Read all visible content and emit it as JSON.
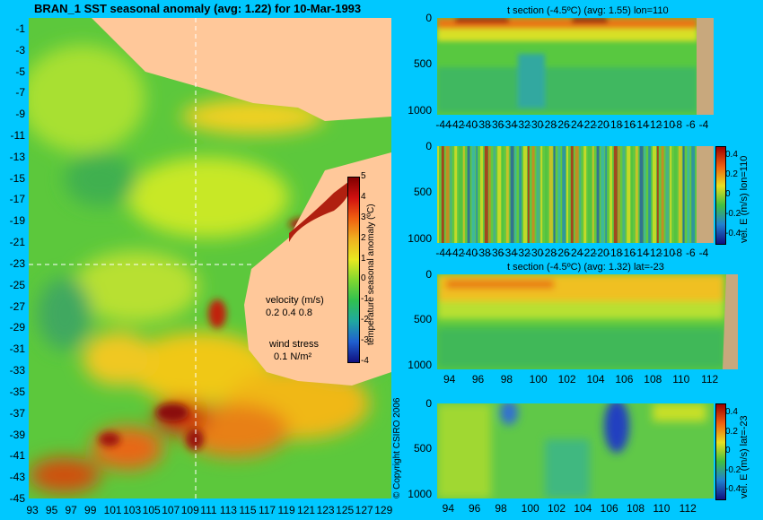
{
  "main_title": "BRAN_1  SST seasonal anomaly (avg: 1.22) for 10-Mar-1993",
  "copyright": "© Copyright CSIRO 2006",
  "colors": {
    "background": "#00c8ff",
    "land_map": "#ffc89a",
    "land_section": "#c8a87d"
  },
  "map": {
    "x_ticks": [
      "93",
      "95",
      "97",
      "99",
      "101",
      "103",
      "105",
      "107",
      "109",
      "111",
      "113",
      "115",
      "117",
      "119",
      "121",
      "123",
      "125",
      "127",
      "129"
    ],
    "y_ticks": [
      "-1",
      "-3",
      "-5",
      "-7",
      "-9",
      "-11",
      "-13",
      "-15",
      "-17",
      "-19",
      "-21",
      "-23",
      "-25",
      "-27",
      "-29",
      "-31",
      "-33",
      "-35",
      "-37",
      "-39",
      "-41",
      "-43",
      "-45"
    ],
    "colorbar_label": "temperature seasonal anomaly (ºC)",
    "colorbar_ticks": [
      "5",
      "4",
      "3",
      "2",
      "1",
      "0",
      "-1",
      "-2",
      "-3",
      "-4"
    ],
    "velocity_label": "velocity (m/s)",
    "velocity_scale": "0.2 0.4 0.8",
    "wind_label": "wind stress",
    "wind_scale": "0.1 N/m²"
  },
  "sections": [
    {
      "title": "t section (-4.5ºC) (avg: 1.55) lon=110",
      "x_ticks": [
        "-44",
        "-42",
        "-40",
        "-38",
        "-36",
        "-34",
        "-32",
        "-30",
        "-28",
        "-26",
        "-24",
        "-22",
        "-20",
        "-18",
        "-16",
        "-14",
        "-12",
        "-10",
        "-8",
        "-6",
        "-4"
      ],
      "y_ticks": [
        "0",
        "500",
        "1000"
      ]
    },
    {
      "title": "",
      "x_ticks": [
        "-44",
        "-42",
        "-40",
        "-38",
        "-36",
        "-34",
        "-32",
        "-30",
        "-28",
        "-26",
        "-24",
        "-22",
        "-20",
        "-18",
        "-16",
        "-14",
        "-12",
        "-10",
        "-8",
        "-6",
        "-4"
      ],
      "y_ticks": [
        "0",
        "500",
        "1000"
      ],
      "colorbar_label": "vel. E (m/s) lon=110",
      "colorbar_ticks": [
        "0.4",
        "0.2",
        "0",
        "-0.2",
        "-0.4"
      ]
    },
    {
      "title": "t section (-4.5ºC) (avg: 1.32) lat=-23",
      "x_ticks": [
        "94",
        "96",
        "98",
        "100",
        "102",
        "104",
        "106",
        "108",
        "110",
        "112"
      ],
      "y_ticks": [
        "0",
        "500",
        "1000"
      ]
    },
    {
      "title": "",
      "x_ticks": [
        "94",
        "96",
        "98",
        "100",
        "102",
        "104",
        "106",
        "108",
        "110",
        "112"
      ],
      "y_ticks": [
        "0",
        "500",
        "1000"
      ],
      "colorbar_label": "vel. E (m/s) lat=-23",
      "colorbar_ticks": [
        "0.4",
        "0.2",
        "0",
        "-0.2",
        "-0.4"
      ]
    }
  ],
  "chart_data": [
    {
      "type": "heatmap",
      "title": "BRAN_1  SST seasonal anomaly (avg: 1.22) for 10-Mar-1993",
      "x_range": [
        92.5,
        130
      ],
      "y_range": [
        -45,
        0
      ],
      "color_range": [
        -4,
        5
      ],
      "colorbar_label": "temperature seasonal anomaly (ºC)"
    },
    {
      "type": "heatmap",
      "title": "t section (-4.5ºC) (avg: 1.55) lon=110",
      "x_range": [
        -45,
        -3
      ],
      "y_range": [
        1050,
        0
      ]
    },
    {
      "type": "heatmap",
      "title": "",
      "x_range": [
        -45,
        -3
      ],
      "y_range": [
        1050,
        0
      ],
      "color_range": [
        -0.5,
        0.5
      ],
      "colorbar_label": "vel. E (m/s) lon=110"
    },
    {
      "type": "heatmap",
      "title": "t section (-4.5ºC) (avg: 1.32) lat=-23",
      "x_range": [
        93,
        114
      ],
      "y_range": [
        1050,
        0
      ]
    },
    {
      "type": "heatmap",
      "title": "",
      "x_range": [
        93,
        114
      ],
      "y_range": [
        1050,
        0
      ],
      "color_range": [
        -0.5,
        0.5
      ],
      "colorbar_label": "vel. E (m/s) lat=-23"
    }
  ]
}
